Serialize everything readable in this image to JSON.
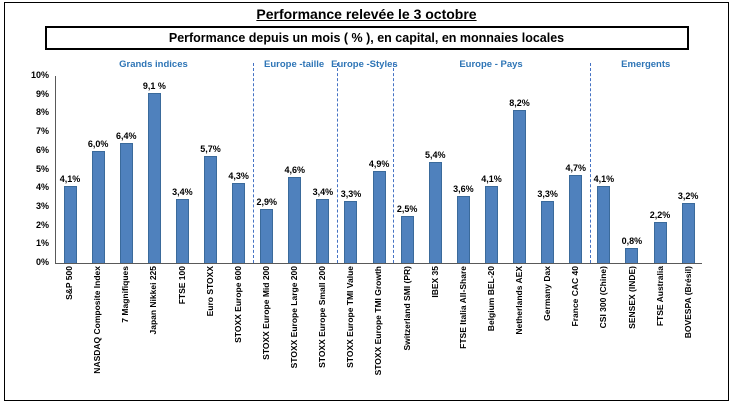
{
  "chart_data": {
    "type": "bar",
    "title": "Performance relevée le 3 octobre",
    "subtitle": "Performance depuis un mois ( % ), en capital, en monnaies locales",
    "categories": [
      "S&P 500",
      "NASDAQ Composite Index",
      "7 Magnifiques",
      "Japan Nikkei 225",
      "FTSE 100",
      "Euro STOXX",
      "STOXX Europe 600",
      "STOXX Europe Mid 200",
      "STOXX Europe Large 200",
      "STOXX Europe Small 200",
      "STOXX Europe TMI Value",
      "STOXX Europe TMI Growth",
      "Switzerland SMI (PR)",
      "IBEX 35",
      "FTSE Italia All-Share",
      "Belgium BEL-20",
      "Netherlands AEX",
      "Germany Dax",
      "France CAC 40",
      "CSI 300 (Chine)",
      "SENSEX (INDE)",
      "FTSE Australia",
      "BOVESPA (Brésil)"
    ],
    "values": [
      4.1,
      6.0,
      6.4,
      9.1,
      3.4,
      5.7,
      4.3,
      2.9,
      4.6,
      3.4,
      3.3,
      4.9,
      2.5,
      5.4,
      3.6,
      4.1,
      8.2,
      3.3,
      4.7,
      4.1,
      0.8,
      2.2,
      3.2
    ],
    "value_labels": [
      "4,1%",
      "6,0%",
      "6,4%",
      "9,1 %",
      "3,4%",
      "5,7%",
      "4,3%",
      "2,9%",
      "4,6%",
      "3,4%",
      "3,3%",
      "4,9%",
      "2,5%",
      "5,4%",
      "3,6%",
      "4,1%",
      "8,2%",
      "3,3%",
      "4,7%",
      "4,1%",
      "0,8%",
      "2,2%",
      "3,2%"
    ],
    "groups": [
      {
        "label": "Grands indices",
        "start": 0,
        "end": 6
      },
      {
        "label": "Europe -taille",
        "start": 7,
        "end": 9
      },
      {
        "label": "Europe -Styles",
        "start": 10,
        "end": 11
      },
      {
        "label": "Europe - Pays",
        "start": 12,
        "end": 18
      },
      {
        "label": "Emergents",
        "start": 19,
        "end": 22
      }
    ],
    "ylim": [
      0,
      10
    ],
    "y_ticks": [
      "0%",
      "1%",
      "2%",
      "3%",
      "4%",
      "5%",
      "6%",
      "7%",
      "8%",
      "9%",
      "10%"
    ],
    "grid": "off",
    "legend": "none",
    "bar_color": "#4F81BD",
    "bar_border": "#3A6A9B",
    "group_label_color": "#2E75B6",
    "separator_color": "#4472C4"
  }
}
